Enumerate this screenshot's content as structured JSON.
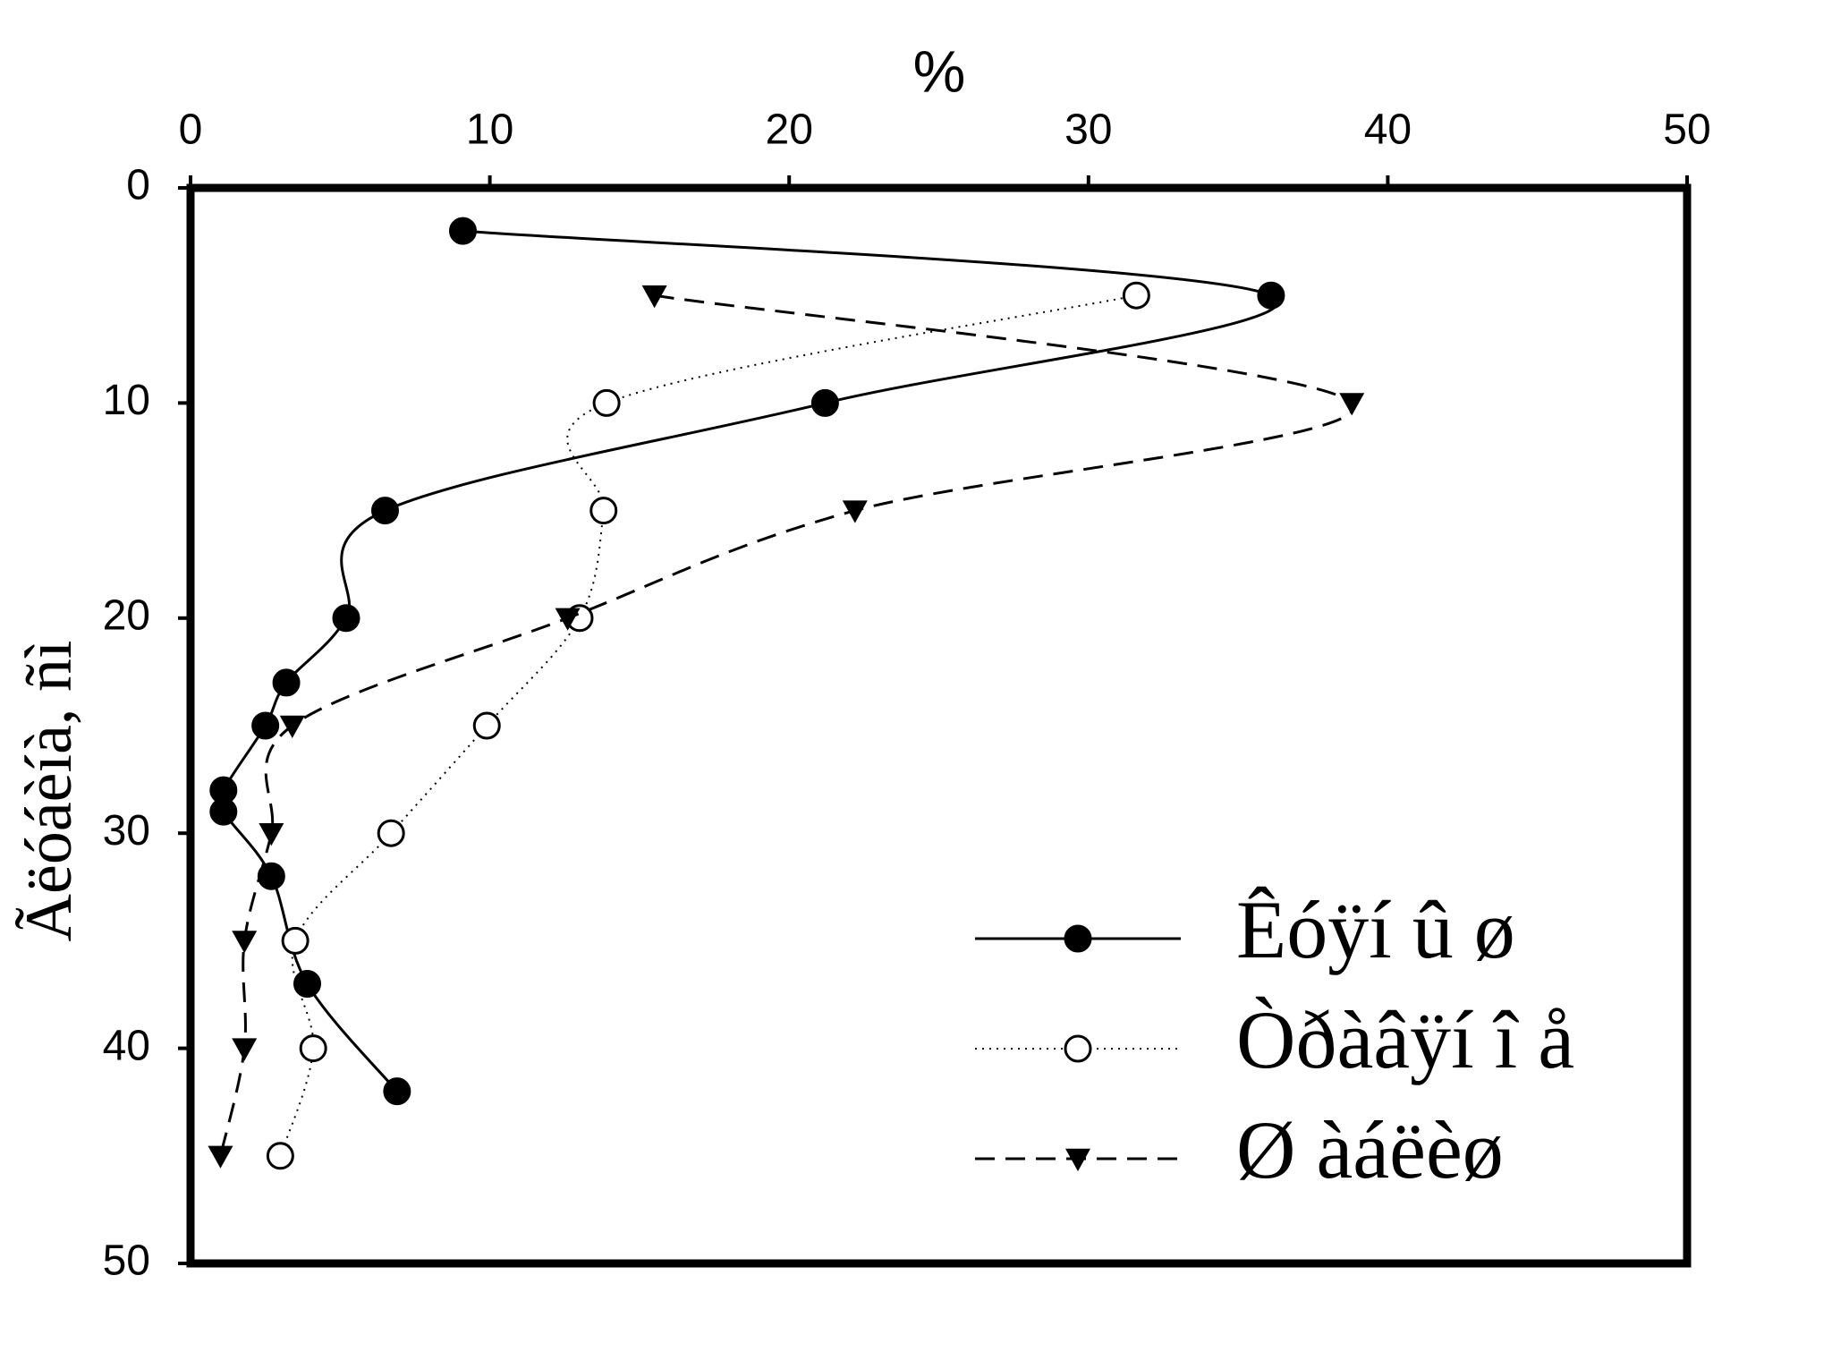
{
  "chart_data": {
    "type": "line",
    "xlabel": "%",
    "ylabel": "Ãëóáèíà, ñì",
    "xlim": [
      0,
      50
    ],
    "xticks": [
      0,
      10,
      20,
      30,
      40,
      50
    ],
    "ylim": [
      0,
      50
    ],
    "yticks": [
      0,
      10,
      20,
      30,
      40,
      50
    ],
    "y_inverted": true,
    "x_axis_position": "top",
    "legend": "lower right",
    "series": [
      {
        "name": "Êóÿí û ø",
        "color": "#000000",
        "marker": "filled-circle",
        "dash": "solid",
        "x": [
          9.1,
          36.1,
          21.2,
          6.5,
          5.2,
          3.2,
          2.5,
          1.1,
          1.1,
          2.7,
          3.9,
          6.9
        ],
        "values": [
          2,
          5,
          10,
          15,
          20,
          23,
          25,
          28,
          29,
          32,
          37,
          42
        ]
      },
      {
        "name": "Òðàâÿí î å",
        "color": "#000000",
        "marker": "open-circle",
        "dash": "dotted",
        "x": [
          31.6,
          13.9,
          13.8,
          13.0,
          9.9,
          6.7,
          3.5,
          4.1,
          3.0
        ],
        "values": [
          5,
          10,
          15,
          20,
          25,
          30,
          35,
          40,
          45
        ]
      },
      {
        "name": "Ø àáëèø",
        "color": "#000000",
        "marker": "triangle-down",
        "dash": "dashed",
        "x": [
          15.5,
          38.8,
          22.2,
          12.6,
          3.4,
          2.7,
          1.8,
          1.8,
          1.0
        ],
        "values": [
          5,
          10,
          15,
          20,
          25,
          30,
          35,
          40,
          45
        ]
      }
    ]
  }
}
